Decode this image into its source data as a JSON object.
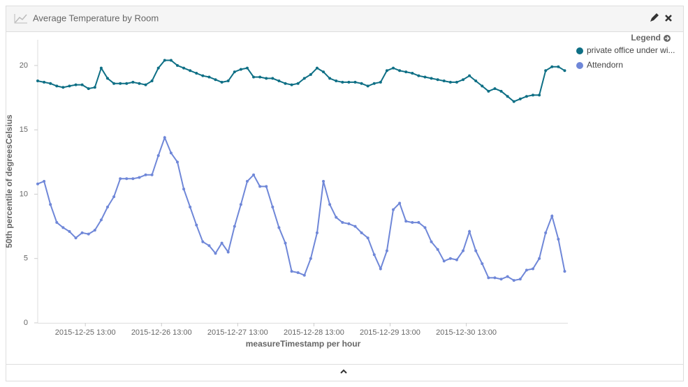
{
  "chart_data": {
    "type": "line",
    "title": "Average Temperature by Room",
    "ylabel": "50th percentile of degreesCelsius",
    "xlabel": "measureTimestamp per hour",
    "legend_title": "Legend",
    "legend_position": "right",
    "x": [
      "2015-12-24 22:00",
      "2015-12-25 00:00",
      "2015-12-25 02:00",
      "2015-12-25 04:00",
      "2015-12-25 06:00",
      "2015-12-25 08:00",
      "2015-12-25 10:00",
      "2015-12-25 12:00",
      "2015-12-25 14:00",
      "2015-12-25 16:00",
      "2015-12-25 18:00",
      "2015-12-25 20:00",
      "2015-12-25 22:00",
      "2015-12-26 00:00",
      "2015-12-26 02:00",
      "2015-12-26 04:00",
      "2015-12-26 06:00",
      "2015-12-26 08:00",
      "2015-12-26 10:00",
      "2015-12-26 12:00",
      "2015-12-26 14:00",
      "2015-12-26 16:00",
      "2015-12-26 18:00",
      "2015-12-26 20:00",
      "2015-12-26 22:00",
      "2015-12-27 00:00",
      "2015-12-27 02:00",
      "2015-12-27 04:00",
      "2015-12-27 06:00",
      "2015-12-27 08:00",
      "2015-12-27 10:00",
      "2015-12-27 12:00",
      "2015-12-27 14:00",
      "2015-12-27 16:00",
      "2015-12-27 18:00",
      "2015-12-27 20:00",
      "2015-12-27 22:00",
      "2015-12-28 00:00",
      "2015-12-28 02:00",
      "2015-12-28 04:00",
      "2015-12-28 06:00",
      "2015-12-28 08:00",
      "2015-12-28 10:00",
      "2015-12-28 12:00",
      "2015-12-28 14:00",
      "2015-12-28 16:00",
      "2015-12-28 18:00",
      "2015-12-28 20:00",
      "2015-12-28 22:00",
      "2015-12-29 00:00",
      "2015-12-29 02:00",
      "2015-12-29 04:00",
      "2015-12-29 06:00",
      "2015-12-29 08:00",
      "2015-12-29 10:00",
      "2015-12-29 12:00",
      "2015-12-29 14:00",
      "2015-12-29 16:00",
      "2015-12-29 18:00",
      "2015-12-29 20:00",
      "2015-12-29 22:00",
      "2015-12-30 00:00",
      "2015-12-30 02:00",
      "2015-12-30 04:00",
      "2015-12-30 06:00",
      "2015-12-30 08:00",
      "2015-12-30 10:00",
      "2015-12-30 12:00",
      "2015-12-30 14:00",
      "2015-12-30 16:00",
      "2015-12-30 18:00",
      "2015-12-30 20:00",
      "2015-12-30 22:00",
      "2015-12-31 00:00",
      "2015-12-31 02:00",
      "2015-12-31 04:00",
      "2015-12-31 06:00",
      "2015-12-31 08:00",
      "2015-12-31 10:00",
      "2015-12-31 12:00",
      "2015-12-31 14:00",
      "2015-12-31 16:00",
      "2015-12-31 18:00",
      "2015-12-31 20:00"
    ],
    "series": [
      {
        "name": "private office under wi...",
        "color": "#0e6f85",
        "values": [
          18.8,
          18.7,
          18.6,
          18.4,
          18.3,
          18.4,
          18.5,
          18.5,
          18.2,
          18.3,
          19.8,
          19.0,
          18.6,
          18.6,
          18.6,
          18.7,
          18.6,
          18.5,
          18.8,
          19.8,
          20.4,
          20.4,
          20.0,
          19.8,
          19.6,
          19.4,
          19.2,
          19.1,
          18.9,
          18.7,
          18.8,
          19.5,
          19.7,
          19.8,
          19.1,
          19.1,
          19.0,
          19.0,
          18.8,
          18.6,
          18.5,
          18.6,
          19.0,
          19.3,
          19.8,
          19.5,
          19.0,
          18.8,
          18.7,
          18.7,
          18.7,
          18.6,
          18.4,
          18.6,
          18.7,
          19.6,
          19.8,
          19.6,
          19.5,
          19.4,
          19.2,
          19.1,
          19.0,
          18.9,
          18.8,
          18.7,
          18.7,
          18.9,
          19.2,
          18.8,
          18.4,
          18.0,
          18.2,
          18.0,
          17.6,
          17.2,
          17.4,
          17.6,
          17.7,
          17.7,
          19.6,
          19.9,
          19.9,
          19.6
        ]
      },
      {
        "name": "Attendorn",
        "color": "#6f87d8",
        "values": [
          10.8,
          11.0,
          9.2,
          7.8,
          7.4,
          7.1,
          6.6,
          7.0,
          6.9,
          7.2,
          8.0,
          9.0,
          9.8,
          11.2,
          11.2,
          11.2,
          11.3,
          11.5,
          11.5,
          13.0,
          14.4,
          13.2,
          12.5,
          10.4,
          9.0,
          7.6,
          6.3,
          6.0,
          5.4,
          6.2,
          5.5,
          7.5,
          9.2,
          11.0,
          11.5,
          10.6,
          10.6,
          9.0,
          7.4,
          6.2,
          4.0,
          3.9,
          3.7,
          5.0,
          7.0,
          11.0,
          9.2,
          8.2,
          7.8,
          7.7,
          7.5,
          7.0,
          6.6,
          5.3,
          4.2,
          5.6,
          8.8,
          9.3,
          7.9,
          7.8,
          7.8,
          7.4,
          6.3,
          5.7,
          4.8,
          5.0,
          4.9,
          5.6,
          7.1,
          5.6,
          4.6,
          3.5,
          3.5,
          3.4,
          3.6,
          3.3,
          3.4,
          4.1,
          4.2,
          5.0,
          7.0,
          8.3,
          6.5,
          4.0
        ]
      }
    ],
    "xlim": [
      "2015-12-24 22:00",
      "2015-12-31 21:00"
    ],
    "xticks": [
      "2015-12-25 13:00",
      "2015-12-26 13:00",
      "2015-12-27 13:00",
      "2015-12-28 13:00",
      "2015-12-29 13:00",
      "2015-12-30 13:00"
    ],
    "ylim": [
      0,
      22
    ],
    "yticks": [
      0,
      5,
      10,
      15,
      20
    ],
    "grid": false
  }
}
